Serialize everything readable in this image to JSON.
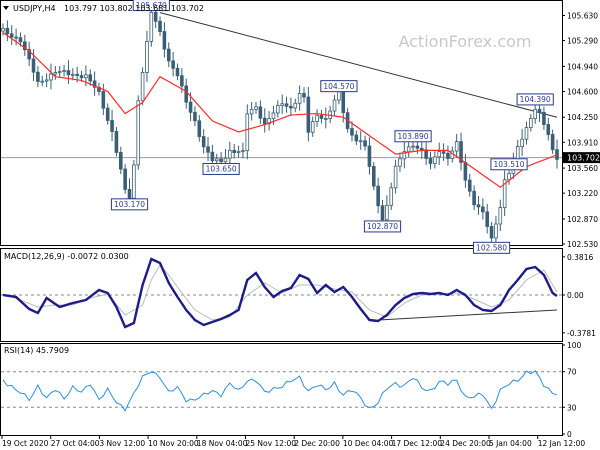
{
  "chart_data": [
    {
      "type": "candlestick",
      "title": "USDJPY,H4",
      "ohlc_header": "103.797 103.802 103.681 103.702",
      "watermark": "ActionForex.com",
      "ylim": [
        102.53,
        105.8
      ],
      "yticks": [
        "105.630",
        "105.290",
        "104.940",
        "104.600",
        "104.250",
        "103.910",
        "103.560",
        "103.220",
        "102.870",
        "102.530"
      ],
      "last_price_label": "103.702",
      "last_price": 103.702,
      "price_path": [
        [
          0,
          105.42
        ],
        [
          4,
          105.3
        ],
        [
          8,
          104.72
        ],
        [
          12,
          104.86
        ],
        [
          16,
          104.84
        ],
        [
          19,
          104.8
        ],
        [
          22,
          104.58
        ],
        [
          25,
          104.05
        ],
        [
          28,
          103.25
        ],
        [
          29,
          103.17
        ],
        [
          30,
          103.6
        ],
        [
          31,
          104.5
        ],
        [
          33,
          105.25
        ],
        [
          34,
          105.67
        ],
        [
          36,
          105.4
        ],
        [
          38,
          105.02
        ],
        [
          40,
          104.82
        ],
        [
          42,
          104.45
        ],
        [
          44,
          104.2
        ],
        [
          46,
          103.85
        ],
        [
          48,
          103.66
        ],
        [
          50,
          103.65
        ],
        [
          52,
          103.8
        ],
        [
          54,
          103.78
        ],
        [
          55,
          103.76
        ],
        [
          56,
          104.3
        ],
        [
          58,
          104.4
        ],
        [
          60,
          104.15
        ],
        [
          62,
          104.3
        ],
        [
          64,
          104.45
        ],
        [
          66,
          104.38
        ],
        [
          68,
          104.55
        ],
        [
          69,
          104.5
        ],
        [
          70,
          104.05
        ],
        [
          72,
          104.3
        ],
        [
          74,
          104.22
        ],
        [
          76,
          104.46
        ],
        [
          77,
          104.57
        ],
        [
          79,
          104.1
        ],
        [
          81,
          103.95
        ],
        [
          83,
          103.85
        ],
        [
          85,
          103.3
        ],
        [
          87,
          102.87
        ],
        [
          88,
          103.05
        ],
        [
          90,
          103.55
        ],
        [
          92,
          103.8
        ],
        [
          94,
          103.89
        ],
        [
          96,
          103.78
        ],
        [
          98,
          103.6
        ],
        [
          100,
          103.82
        ],
        [
          102,
          103.7
        ],
        [
          104,
          103.88
        ],
        [
          106,
          103.4
        ],
        [
          108,
          103.1
        ],
        [
          110,
          102.95
        ],
        [
          112,
          102.58
        ],
        [
          114,
          103.05
        ],
        [
          115,
          103.4
        ],
        [
          116,
          103.51
        ],
        [
          118,
          103.82
        ],
        [
          120,
          104.1
        ],
        [
          121,
          104.25
        ],
        [
          122,
          104.39
        ],
        [
          123,
          104.3
        ],
        [
          125,
          104.0
        ],
        [
          126,
          103.78
        ],
        [
          127,
          103.702
        ]
      ],
      "sma_path": [
        [
          0,
          105.4
        ],
        [
          6,
          105.15
        ],
        [
          12,
          104.8
        ],
        [
          18,
          104.75
        ],
        [
          24,
          104.6
        ],
        [
          28,
          104.3
        ],
        [
          32,
          104.45
        ],
        [
          36,
          104.8
        ],
        [
          42,
          104.6
        ],
        [
          48,
          104.2
        ],
        [
          54,
          104.05
        ],
        [
          60,
          104.15
        ],
        [
          66,
          104.28
        ],
        [
          72,
          104.3
        ],
        [
          78,
          104.25
        ],
        [
          84,
          104.0
        ],
        [
          90,
          103.75
        ],
        [
          96,
          103.8
        ],
        [
          102,
          103.8
        ],
        [
          108,
          103.55
        ],
        [
          114,
          103.3
        ],
        [
          120,
          103.58
        ],
        [
          127,
          103.74
        ]
      ],
      "trendline": {
        "from": [
          36,
          105.67
        ],
        "to": [
          127,
          104.25
        ]
      },
      "annotations": [
        "105.670",
        "104.570",
        "104.390",
        "103.890",
        "103.650",
        "103.510",
        "103.170",
        "102.870",
        "102.580"
      ],
      "annotation_points": [
        [
          34,
          105.67
        ],
        [
          77,
          104.57
        ],
        [
          122,
          104.39
        ],
        [
          94,
          103.89
        ],
        [
          50,
          103.65
        ],
        [
          116,
          103.51
        ],
        [
          29,
          103.17
        ],
        [
          87,
          102.87
        ],
        [
          112,
          102.58
        ]
      ],
      "xticks": [
        "19 Oct 2020",
        "27 Oct 04:00",
        "3 Nov 12:00",
        "10 Nov 20:00",
        "18 Nov 04:00",
        "25 Nov 12:00",
        "2 Dec 20:00",
        "10 Dec 04:00",
        "17 Dec 12:00",
        "24 Dec 20:00",
        "5 Jan 04:00",
        "12 Jan 12:00"
      ]
    },
    {
      "type": "line",
      "title": "MACD(12,26,9) -0.0072 0.0300",
      "ylim": [
        -0.3781,
        0.3816
      ],
      "yticks": [
        "0.3816",
        "0.00",
        "-0.3781"
      ],
      "macd_path": [
        [
          0,
          0.0
        ],
        [
          3,
          -0.02
        ],
        [
          6,
          -0.14
        ],
        [
          8,
          -0.18
        ],
        [
          10,
          -0.03
        ],
        [
          13,
          -0.12
        ],
        [
          16,
          -0.08
        ],
        [
          19,
          -0.05
        ],
        [
          22,
          0.05
        ],
        [
          24,
          0.02
        ],
        [
          26,
          -0.12
        ],
        [
          28,
          -0.32
        ],
        [
          30,
          -0.28
        ],
        [
          32,
          0.1
        ],
        [
          34,
          0.36
        ],
        [
          36,
          0.32
        ],
        [
          38,
          0.12
        ],
        [
          40,
          -0.02
        ],
        [
          42,
          -0.15
        ],
        [
          44,
          -0.25
        ],
        [
          46,
          -0.3
        ],
        [
          48,
          -0.27
        ],
        [
          50,
          -0.24
        ],
        [
          52,
          -0.2
        ],
        [
          54,
          -0.15
        ],
        [
          56,
          0.15
        ],
        [
          58,
          0.22
        ],
        [
          60,
          0.08
        ],
        [
          62,
          -0.02
        ],
        [
          64,
          0.04
        ],
        [
          66,
          0.07
        ],
        [
          68,
          0.2
        ],
        [
          70,
          0.16
        ],
        [
          72,
          0.02
        ],
        [
          74,
          0.1
        ],
        [
          76,
          0.03
        ],
        [
          78,
          0.08
        ],
        [
          80,
          -0.02
        ],
        [
          82,
          -0.14
        ],
        [
          84,
          -0.25
        ],
        [
          86,
          -0.26
        ],
        [
          88,
          -0.2
        ],
        [
          90,
          -0.1
        ],
        [
          92,
          -0.03
        ],
        [
          94,
          0.01
        ],
        [
          96,
          0.02
        ],
        [
          98,
          0.01
        ],
        [
          100,
          0.02
        ],
        [
          102,
          0.0
        ],
        [
          104,
          0.05
        ],
        [
          106,
          0.0
        ],
        [
          108,
          -0.1
        ],
        [
          110,
          -0.15
        ],
        [
          112,
          -0.16
        ],
        [
          114,
          -0.1
        ],
        [
          116,
          0.05
        ],
        [
          118,
          0.15
        ],
        [
          120,
          0.26
        ],
        [
          122,
          0.28
        ],
        [
          124,
          0.2
        ],
        [
          126,
          0.02
        ],
        [
          127,
          -0.01
        ]
      ],
      "signal_path": [
        [
          0,
          0.01
        ],
        [
          4,
          -0.05
        ],
        [
          8,
          -0.12
        ],
        [
          12,
          -0.1
        ],
        [
          16,
          -0.1
        ],
        [
          20,
          -0.03
        ],
        [
          24,
          0.01
        ],
        [
          28,
          -0.2
        ],
        [
          32,
          -0.1
        ],
        [
          34,
          0.15
        ],
        [
          36,
          0.3
        ],
        [
          38,
          0.2
        ],
        [
          40,
          0.08
        ],
        [
          44,
          -0.15
        ],
        [
          48,
          -0.25
        ],
        [
          52,
          -0.22
        ],
        [
          56,
          0.0
        ],
        [
          60,
          0.12
        ],
        [
          64,
          0.02
        ],
        [
          68,
          0.1
        ],
        [
          72,
          0.1
        ],
        [
          76,
          0.06
        ],
        [
          80,
          0.03
        ],
        [
          84,
          -0.15
        ],
        [
          88,
          -0.22
        ],
        [
          92,
          -0.08
        ],
        [
          96,
          0.0
        ],
        [
          100,
          0.01
        ],
        [
          104,
          0.02
        ],
        [
          108,
          -0.04
        ],
        [
          112,
          -0.12
        ],
        [
          116,
          -0.05
        ],
        [
          120,
          0.15
        ],
        [
          124,
          0.25
        ],
        [
          127,
          0.03
        ]
      ],
      "trendline": {
        "from": [
          86,
          -0.25
        ],
        "to": [
          127,
          -0.15
        ]
      }
    },
    {
      "type": "line",
      "title": "RSI(14) 45.7909",
      "ylim": [
        0,
        100
      ],
      "yticks": [
        "100",
        "70",
        "30",
        "0"
      ],
      "rsi_path": [
        [
          0,
          62
        ],
        [
          3,
          48
        ],
        [
          6,
          40
        ],
        [
          8,
          55
        ],
        [
          10,
          38
        ],
        [
          12,
          50
        ],
        [
          14,
          42
        ],
        [
          16,
          52
        ],
        [
          18,
          45
        ],
        [
          20,
          58
        ],
        [
          22,
          40
        ],
        [
          24,
          48
        ],
        [
          26,
          35
        ],
        [
          28,
          30
        ],
        [
          30,
          45
        ],
        [
          32,
          62
        ],
        [
          34,
          72
        ],
        [
          36,
          65
        ],
        [
          38,
          45
        ],
        [
          40,
          52
        ],
        [
          42,
          40
        ],
        [
          44,
          38
        ],
        [
          46,
          42
        ],
        [
          48,
          50
        ],
        [
          50,
          45
        ],
        [
          52,
          55
        ],
        [
          54,
          48
        ],
        [
          56,
          62
        ],
        [
          58,
          60
        ],
        [
          60,
          45
        ],
        [
          62,
          52
        ],
        [
          64,
          55
        ],
        [
          66,
          58
        ],
        [
          68,
          63
        ],
        [
          70,
          50
        ],
        [
          72,
          55
        ],
        [
          74,
          48
        ],
        [
          76,
          58
        ],
        [
          78,
          45
        ],
        [
          80,
          48
        ],
        [
          82,
          40
        ],
        [
          84,
          30
        ],
        [
          86,
          35
        ],
        [
          88,
          50
        ],
        [
          90,
          58
        ],
        [
          92,
          55
        ],
        [
          94,
          62
        ],
        [
          96,
          52
        ],
        [
          98,
          50
        ],
        [
          100,
          58
        ],
        [
          102,
          55
        ],
        [
          104,
          62
        ],
        [
          106,
          42
        ],
        [
          108,
          40
        ],
        [
          110,
          45
        ],
        [
          112,
          30
        ],
        [
          114,
          48
        ],
        [
          116,
          55
        ],
        [
          118,
          62
        ],
        [
          120,
          70
        ],
        [
          122,
          68
        ],
        [
          124,
          55
        ],
        [
          126,
          48
        ],
        [
          127,
          46
        ]
      ]
    }
  ]
}
